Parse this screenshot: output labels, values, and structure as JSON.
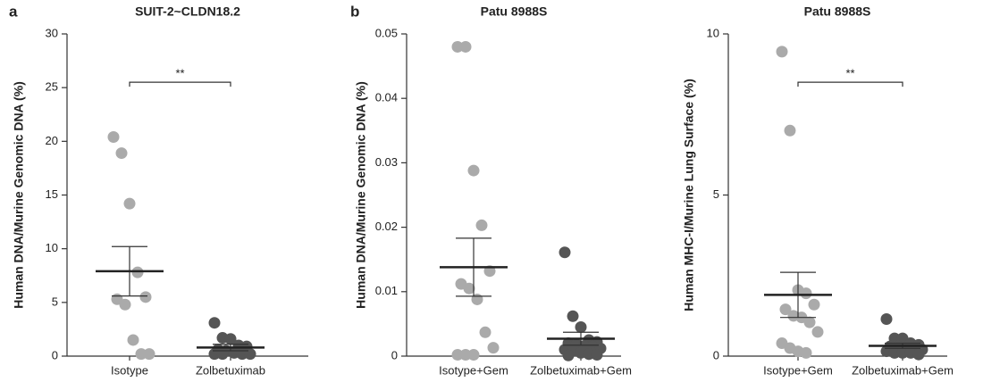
{
  "chart_data": [
    {
      "type": "dot",
      "panel_label": "a",
      "title": "SUIT-2~CLDN18.2",
      "y_label": "Human DNA/Murine Genomic DNA (%)",
      "ylim": [
        0,
        30
      ],
      "yticks": [
        0,
        5,
        10,
        15,
        20,
        25,
        30
      ],
      "significance": "**",
      "groups": [
        {
          "name": "Isotype",
          "color": "#aaaaaa",
          "values": [
            20.4,
            18.9,
            14.2,
            7.8,
            5.5,
            5.3,
            4.8,
            1.5,
            0.2,
            0.2
          ],
          "mean": 7.9,
          "sem": 2.3
        },
        {
          "name": "Zolbetuximab",
          "color": "#555555",
          "values": [
            3.1,
            1.7,
            1.6,
            1.0,
            0.9,
            0.6,
            0.5,
            0.3,
            0.2,
            0.2,
            0.2,
            0.2
          ],
          "mean": 0.8,
          "sem": 0.3
        }
      ]
    },
    {
      "type": "dot",
      "panel_label": "b",
      "title": "Patu 8988S",
      "y_label": "Human DNA/Murine Genomic DNA (%)",
      "ylim": [
        0,
        0.05
      ],
      "yticks": [
        0,
        0.01,
        0.02,
        0.03,
        0.04,
        0.05
      ],
      "groups": [
        {
          "name": "Isotype+Gem",
          "color": "#aaaaaa",
          "values": [
            0.048,
            0.048,
            0.0288,
            0.0203,
            0.0132,
            0.0112,
            0.0105,
            0.0088,
            0.0037,
            0.0013,
            0.0002,
            0.0002,
            0.0002
          ],
          "mean": 0.0138,
          "sem": 0.0045
        },
        {
          "name": "Zolbetuximab+Gem",
          "color": "#555555",
          "values": [
            0.0161,
            0.0062,
            0.0045,
            0.0025,
            0.0022,
            0.002,
            0.0018,
            0.0016,
            0.0015,
            0.0012,
            0.001,
            0.0008,
            0.0005,
            0.0003,
            0.0002,
            0.0001
          ],
          "mean": 0.0027,
          "sem": 0.001
        }
      ]
    },
    {
      "type": "dot",
      "title": "Patu 8988S",
      "y_label": "Human MHC-I/Murine Lung Surface (%)",
      "ylim": [
        0,
        10
      ],
      "yticks": [
        0,
        5,
        10
      ],
      "significance": "**",
      "groups": [
        {
          "name": "Isotype+Gem",
          "color": "#aaaaaa",
          "values": [
            9.45,
            7.0,
            2.05,
            1.95,
            1.6,
            1.45,
            1.25,
            1.2,
            1.05,
            0.75,
            0.4,
            0.25,
            0.15,
            0.1
          ],
          "mean": 1.9,
          "sem": 0.7
        },
        {
          "name": "Zolbetuximab+Gem",
          "color": "#555555",
          "values": [
            1.15,
            0.55,
            0.55,
            0.4,
            0.35,
            0.3,
            0.3,
            0.25,
            0.2,
            0.2,
            0.15,
            0.1,
            0.1,
            0.1,
            0.05
          ],
          "mean": 0.32,
          "sem": 0.08
        }
      ]
    }
  ]
}
